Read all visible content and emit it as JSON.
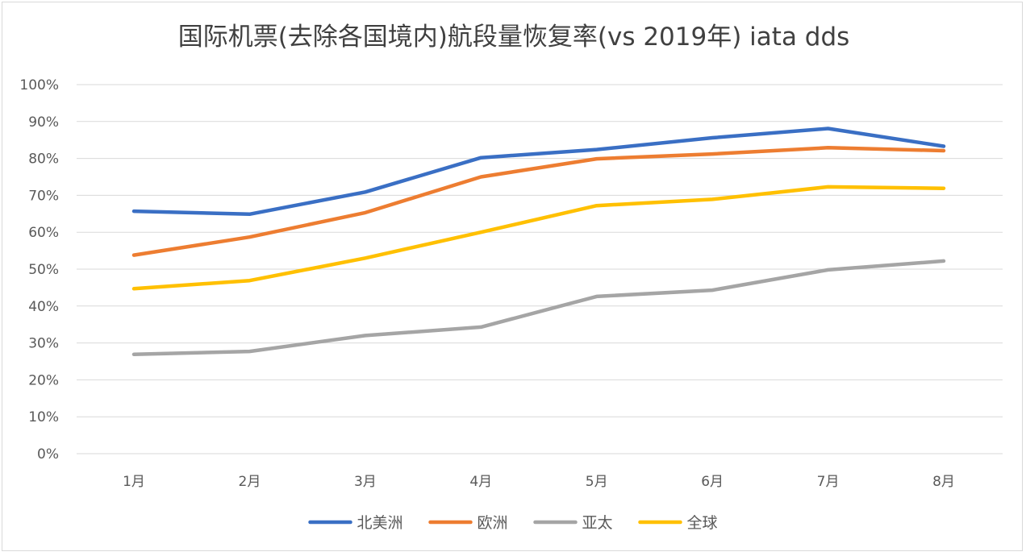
{
  "chart_data": {
    "type": "line",
    "title": "国际机票(去除各国境内)航段量恢复率(vs 2019年) iata dds",
    "xlabel": "",
    "ylabel": "",
    "categories": [
      "1月",
      "2月",
      "3月",
      "4月",
      "5月",
      "6月",
      "7月",
      "8月"
    ],
    "y_ticks": [
      "0%",
      "10%",
      "20%",
      "30%",
      "40%",
      "50%",
      "60%",
      "70%",
      "80%",
      "90%",
      "100%"
    ],
    "ylim": [
      0,
      100
    ],
    "y_unit": "%",
    "grid": true,
    "legend_position": "bottom",
    "series": [
      {
        "name": "北美洲",
        "color": "#3a6fc4",
        "values": [
          65.7,
          64.9,
          70.9,
          80.2,
          82.4,
          85.6,
          88.1,
          83.3
        ]
      },
      {
        "name": "欧洲",
        "color": "#ed7d31",
        "values": [
          53.8,
          58.7,
          65.3,
          75.0,
          79.9,
          81.2,
          82.9,
          82.1
        ]
      },
      {
        "name": "亚太",
        "color": "#a5a5a5",
        "values": [
          26.9,
          27.7,
          32.0,
          34.3,
          42.6,
          44.3,
          49.8,
          52.2
        ]
      },
      {
        "name": "全球",
        "color": "#ffc000",
        "values": [
          44.7,
          46.9,
          53.0,
          60.0,
          67.2,
          68.9,
          72.3,
          71.9
        ]
      }
    ]
  }
}
